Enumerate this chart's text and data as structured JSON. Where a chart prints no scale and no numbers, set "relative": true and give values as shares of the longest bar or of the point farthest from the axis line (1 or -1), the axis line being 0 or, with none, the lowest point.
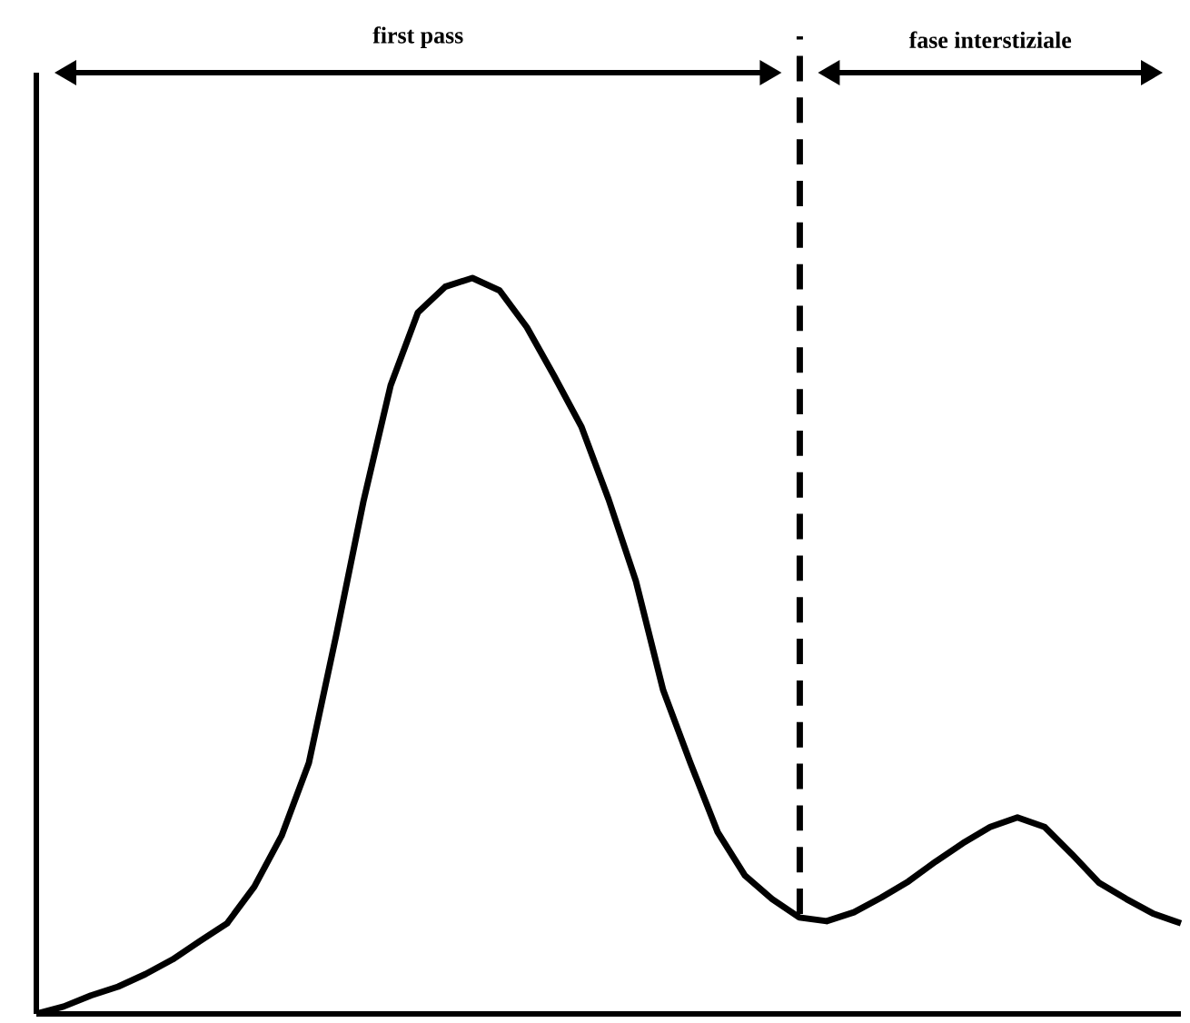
{
  "chart_data": {
    "type": "line",
    "relative": true,
    "categories": [
      null,
      null,
      null,
      null,
      null,
      null,
      null,
      null,
      null,
      null,
      null,
      null,
      null,
      null,
      null,
      null,
      null,
      null,
      null,
      null,
      null,
      null,
      null,
      null,
      null,
      null,
      null,
      null,
      null,
      null,
      null,
      null,
      null,
      null,
      null,
      null,
      null,
      null,
      null,
      null,
      null,
      null,
      null
    ],
    "series": [
      {
        "color": "#000000",
        "values": [
          0,
          0.01,
          0.025,
          0.037,
          0.054,
          0.074,
          0.099,
          0.123,
          0.173,
          0.242,
          0.341,
          0.514,
          0.696,
          0.854,
          0.953,
          0.988,
          1.0,
          0.983,
          0.933,
          0.867,
          0.798,
          0.699,
          0.588,
          0.44,
          0.341,
          0.247,
          0.188,
          0.156,
          0.131,
          0.126,
          0.138,
          0.158,
          0.18,
          0.207,
          0.232,
          0.254,
          0.267,
          0.254,
          0.217,
          0.178,
          0.156,
          0.136,
          0.123
        ]
      }
    ],
    "annotations": [
      "first pass",
      "fase interstiziale"
    ]
  }
}
